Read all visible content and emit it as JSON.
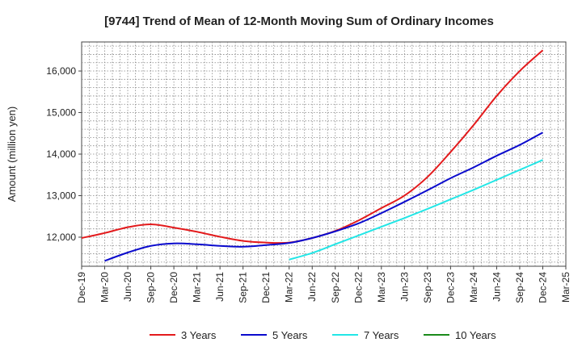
{
  "chart_data": {
    "type": "line",
    "title": "[9744]  Trend of Mean of 12-Month Moving Sum of Ordinary Incomes",
    "xlabel": "",
    "ylabel": "Amount (million yen)",
    "categories": [
      "Dec-19",
      "Mar-20",
      "Jun-20",
      "Sep-20",
      "Dec-20",
      "Mar-21",
      "Jun-21",
      "Sep-21",
      "Dec-21",
      "Mar-22",
      "Jun-22",
      "Sep-22",
      "Dec-22",
      "Mar-23",
      "Jun-23",
      "Sep-23",
      "Dec-23",
      "Mar-24",
      "Jun-24",
      "Sep-24",
      "Dec-24",
      "Mar-25"
    ],
    "ylim": [
      11300,
      16700
    ],
    "yticks": [
      12000,
      13000,
      14000,
      15000,
      16000
    ],
    "ytick_labels": [
      "12,000",
      "13,000",
      "14,000",
      "15,000",
      "16,000"
    ],
    "grid": true,
    "legend_position": "bottom",
    "series": [
      {
        "name": "3 Years",
        "color": "#e31a1c",
        "values": [
          11980,
          12100,
          12240,
          12310,
          12230,
          12130,
          12010,
          11910,
          11870,
          11870,
          11980,
          12150,
          12400,
          12700,
          13000,
          13450,
          14050,
          14700,
          15400,
          16000,
          16500,
          null
        ]
      },
      {
        "name": "5 Years",
        "color": "#0a0acd",
        "values": [
          null,
          11430,
          11630,
          11790,
          11850,
          11830,
          11790,
          11770,
          11810,
          11860,
          11980,
          12140,
          12330,
          12580,
          12850,
          13130,
          13420,
          13680,
          13960,
          14220,
          14520,
          null
        ]
      },
      {
        "name": "7 Years",
        "color": "#22e6e6",
        "values": [
          null,
          null,
          null,
          null,
          null,
          null,
          null,
          null,
          null,
          11460,
          11620,
          11830,
          12040,
          12250,
          12460,
          12680,
          12910,
          13140,
          13380,
          13620,
          13860,
          null
        ]
      },
      {
        "name": "10 Years",
        "color": "#1a8a1a",
        "values": [
          null,
          null,
          null,
          null,
          null,
          null,
          null,
          null,
          null,
          null,
          null,
          null,
          null,
          null,
          null,
          null,
          null,
          null,
          null,
          null,
          null,
          null
        ]
      }
    ]
  }
}
